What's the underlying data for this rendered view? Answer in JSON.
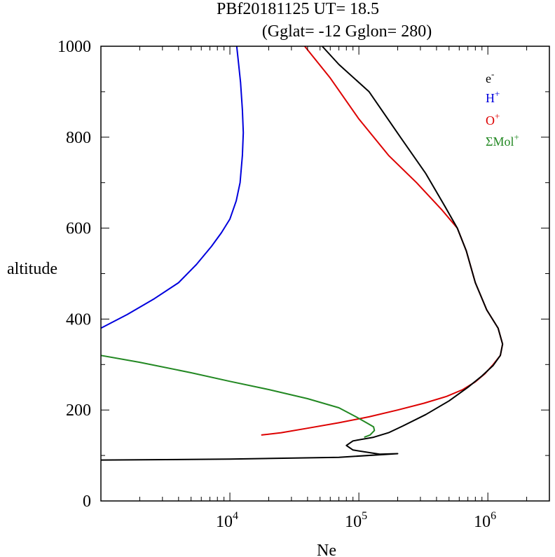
{
  "title_line1": "PBf20181125   UT=  18.5",
  "title_line2": "(Gglat= -12   Gglon=  280)",
  "chart_data": {
    "type": "line",
    "xlabel": "Ne",
    "ylabel": "altitude",
    "xscale": "log",
    "xlim": [
      1000,
      3000000
    ],
    "ylim": [
      0,
      1000
    ],
    "x_tick_labels": [
      {
        "value": 10000,
        "base": "10",
        "exp": "4"
      },
      {
        "value": 100000,
        "base": "10",
        "exp": "5"
      },
      {
        "value": 1000000,
        "base": "10",
        "exp": "6"
      }
    ],
    "y_tick_labels": [
      {
        "value": 0,
        "label": "0"
      },
      {
        "value": 200,
        "label": "200"
      },
      {
        "value": 400,
        "label": "400"
      },
      {
        "value": 600,
        "label": "600"
      },
      {
        "value": 800,
        "label": "800"
      },
      {
        "value": 1000,
        "label": "1000"
      }
    ],
    "legend_position": "top-right",
    "legend": [
      {
        "key": "e",
        "base": "e",
        "sup": "-",
        "color": "#000000"
      },
      {
        "key": "H",
        "base": "H",
        "sup": "+",
        "color": "#0000dd"
      },
      {
        "key": "O",
        "base": "O",
        "sup": "+",
        "color": "#dd0000"
      },
      {
        "key": "Mol",
        "base": "ΣMol",
        "sup": "+",
        "color": "#228822"
      }
    ],
    "series": [
      {
        "key": "H",
        "color": "#0000dd",
        "points": [
          [
            1000,
            380
          ],
          [
            1600,
            410
          ],
          [
            2600,
            445
          ],
          [
            4000,
            480
          ],
          [
            5500,
            520
          ],
          [
            7200,
            560
          ],
          [
            8600,
            590
          ],
          [
            10000,
            620
          ],
          [
            11200,
            660
          ],
          [
            12000,
            700
          ],
          [
            12500,
            760
          ],
          [
            12700,
            810
          ],
          [
            12500,
            860
          ],
          [
            12100,
            920
          ],
          [
            11600,
            970
          ],
          [
            11300,
            1000
          ]
        ]
      },
      {
        "key": "O",
        "color": "#dd0000",
        "points": [
          [
            17500,
            145
          ],
          [
            25000,
            150
          ],
          [
            40000,
            160
          ],
          [
            70000,
            172
          ],
          [
            120000,
            185
          ],
          [
            200000,
            200
          ],
          [
            320000,
            215
          ],
          [
            480000,
            230
          ],
          [
            640000,
            245
          ],
          [
            800000,
            262
          ],
          [
            950000,
            280
          ],
          [
            1100000,
            300
          ],
          [
            1250000,
            320
          ],
          [
            1300000,
            345
          ],
          [
            1200000,
            380
          ],
          [
            980000,
            420
          ],
          [
            800000,
            480
          ],
          [
            680000,
            550
          ],
          [
            580000,
            600
          ],
          [
            440000,
            640
          ],
          [
            280000,
            700
          ],
          [
            170000,
            760
          ],
          [
            100000,
            840
          ],
          [
            60000,
            930
          ],
          [
            38000,
            1000
          ]
        ]
      },
      {
        "key": "Mol",
        "color": "#228822",
        "points": [
          [
            1000,
            320
          ],
          [
            2000,
            305
          ],
          [
            5000,
            282
          ],
          [
            10000,
            263
          ],
          [
            20000,
            245
          ],
          [
            40000,
            225
          ],
          [
            70000,
            205
          ],
          [
            95000,
            185
          ],
          [
            118000,
            170
          ],
          [
            130000,
            163
          ],
          [
            132000,
            155
          ],
          [
            122000,
            145
          ],
          [
            110000,
            140
          ]
        ]
      },
      {
        "key": "e",
        "color": "#000000",
        "points": [
          [
            1000,
            90
          ],
          [
            10000,
            92
          ],
          [
            70000,
            96
          ],
          [
            200000,
            104
          ],
          [
            145000,
            103
          ],
          [
            90000,
            112
          ],
          [
            80000,
            122
          ],
          [
            90000,
            132
          ],
          [
            130000,
            140
          ],
          [
            170000,
            150
          ],
          [
            220000,
            165
          ],
          [
            330000,
            190
          ],
          [
            500000,
            220
          ],
          [
            700000,
            250
          ],
          [
            900000,
            275
          ],
          [
            1100000,
            298
          ],
          [
            1250000,
            320
          ],
          [
            1300000,
            345
          ],
          [
            1200000,
            380
          ],
          [
            980000,
            420
          ],
          [
            800000,
            480
          ],
          [
            680000,
            550
          ],
          [
            580000,
            600
          ],
          [
            460000,
            650
          ],
          [
            330000,
            720
          ],
          [
            210000,
            800
          ],
          [
            120000,
            900
          ],
          [
            70000,
            960
          ],
          [
            52000,
            1000
          ]
        ]
      }
    ]
  }
}
